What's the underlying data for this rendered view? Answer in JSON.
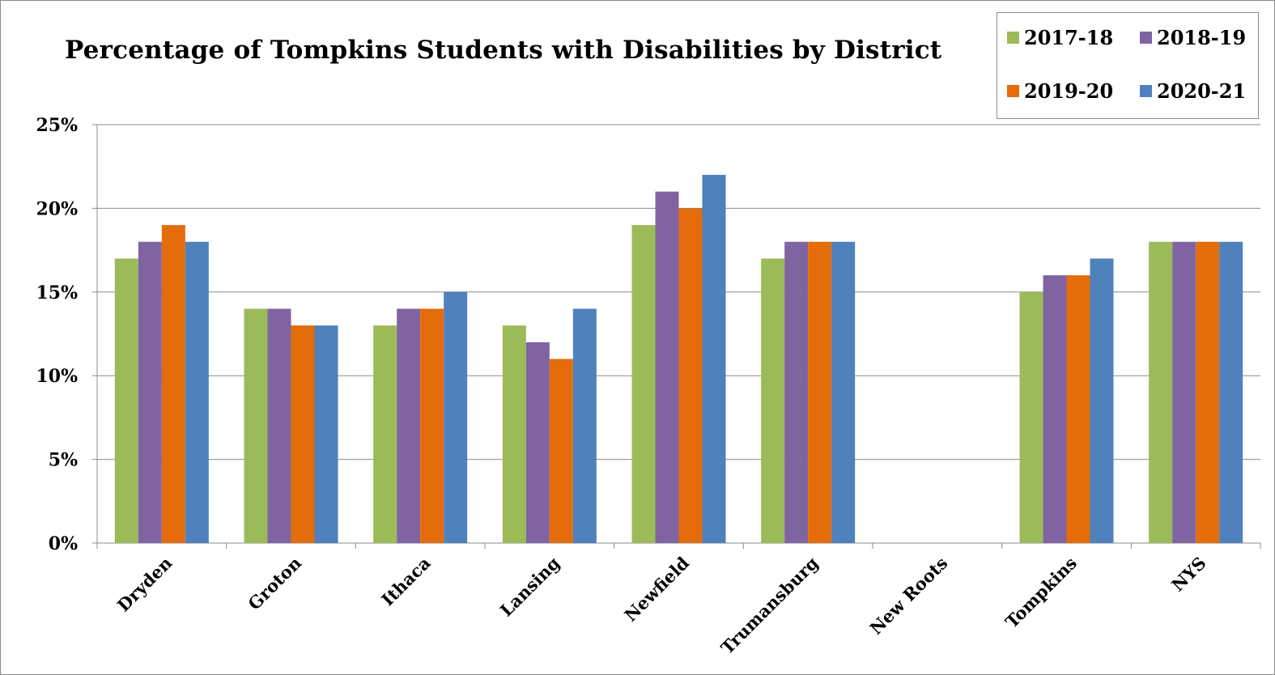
{
  "chart_data": {
    "type": "bar",
    "title": "Percentage of Tompkins Students with Disabilities by District",
    "xlabel": "",
    "ylabel": "",
    "categories": [
      "Dryden",
      "Groton",
      "Ithaca",
      "Lansing",
      "Newfield",
      "Trumansburg",
      "New Roots",
      "Tompkins",
      "NYS"
    ],
    "series": [
      {
        "name": "2017-18",
        "color": "#9bbb59",
        "values": [
          17,
          14,
          13,
          13,
          19,
          17,
          null,
          15,
          18
        ]
      },
      {
        "name": "2018-19",
        "color": "#8064a2",
        "values": [
          18,
          14,
          14,
          12,
          21,
          18,
          null,
          16,
          18
        ]
      },
      {
        "name": "2019-20",
        "color": "#e46c0a",
        "values": [
          19,
          13,
          14,
          11,
          20,
          18,
          null,
          16,
          18
        ]
      },
      {
        "name": "2020-21",
        "color": "#4f81bd",
        "values": [
          18,
          13,
          15,
          14,
          22,
          18,
          null,
          17,
          18
        ]
      }
    ],
    "ylim": [
      0,
      25
    ],
    "yticks": [
      0,
      5,
      10,
      15,
      20,
      25
    ],
    "ytick_labels": [
      "0%",
      "5%",
      "10%",
      "15%",
      "20%",
      "25%"
    ],
    "grid": true,
    "legend_position": "top-right"
  }
}
